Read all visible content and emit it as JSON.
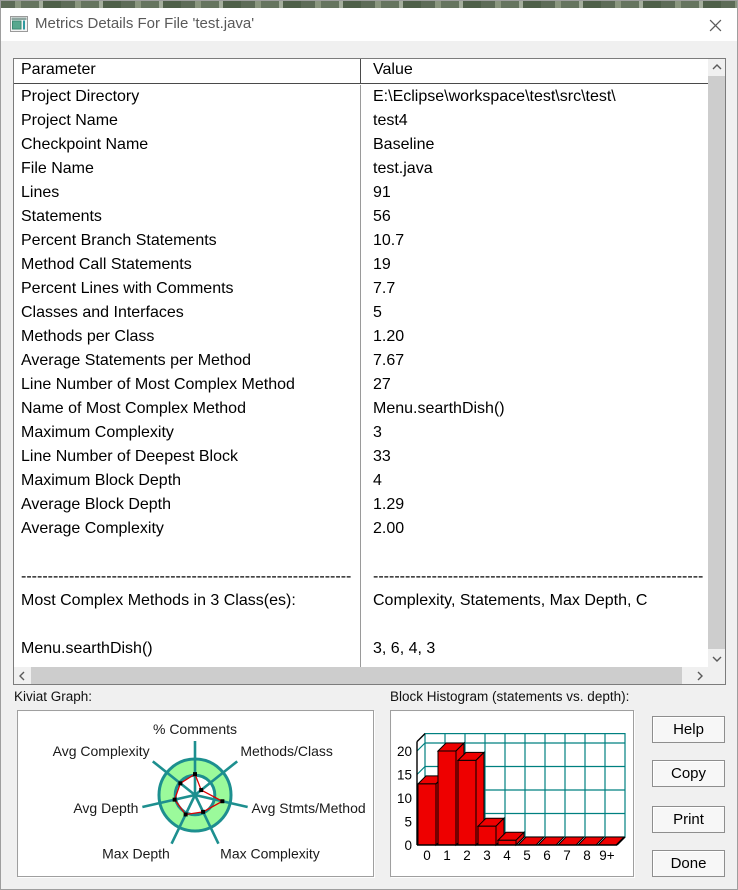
{
  "window": {
    "title": "Metrics Details For File 'test.java'"
  },
  "table": {
    "columns": [
      "Parameter",
      "Value"
    ],
    "rows": [
      [
        "Project Directory",
        "E:\\Eclipse\\workspace\\test\\src\\test\\"
      ],
      [
        "Project Name",
        "test4"
      ],
      [
        "Checkpoint Name",
        "Baseline"
      ],
      [
        "File Name",
        "test.java"
      ],
      [
        "Lines",
        "91"
      ],
      [
        "Statements",
        "56"
      ],
      [
        "Percent Branch Statements",
        "10.7"
      ],
      [
        "Method Call Statements",
        "19"
      ],
      [
        "Percent Lines with Comments",
        "7.7"
      ],
      [
        "Classes and Interfaces",
        "5"
      ],
      [
        "Methods per Class",
        "1.20"
      ],
      [
        "Average Statements per Method",
        "7.67"
      ],
      [
        "Line Number of Most Complex Method",
        "27"
      ],
      [
        "Name of Most Complex Method",
        "Menu.searthDish()"
      ],
      [
        "Maximum Complexity",
        "3"
      ],
      [
        "Line Number of Deepest Block",
        "33"
      ],
      [
        "Maximum Block Depth",
        "4"
      ],
      [
        "Average Block Depth",
        "1.29"
      ],
      [
        "Average Complexity",
        "2.00"
      ],
      [
        "",
        ""
      ],
      [
        "--------------------------------------------------------------",
        "--------------------------------------------------------------"
      ],
      [
        "Most Complex Methods in 3 Class(es):",
        "Complexity, Statements, Max Depth, C"
      ],
      [
        "",
        ""
      ],
      [
        "Menu.searthDish()",
        "3, 6, 4, 3"
      ]
    ]
  },
  "kiviat": {
    "label": "Kiviat Graph:"
  },
  "histogram": {
    "label": "Block Histogram (statements vs. depth):"
  },
  "chart_data": [
    {
      "type": "radar",
      "title": "Kiviat Graph",
      "axes": [
        "% Comments",
        "Methods/Class",
        "Avg Stmts/Method",
        "Max Complexity",
        "Max Depth",
        "Avg Depth",
        "Avg Complexity"
      ],
      "values_normalized": [
        0.58,
        0.22,
        0.78,
        0.52,
        0.6,
        0.58,
        0.52
      ],
      "ring_inner_fraction": 0.55,
      "ring_fill": "#9bfa9b",
      "line_color": "#1d8f8f",
      "data_color": "#dd0000",
      "marker_color": "#000000"
    },
    {
      "type": "bar",
      "title": "Block Histogram (statements vs. depth)",
      "categories": [
        "0",
        "1",
        "2",
        "3",
        "4",
        "5",
        "6",
        "7",
        "8",
        "9+"
      ],
      "values": [
        13,
        20,
        18,
        4,
        1,
        0,
        0,
        0,
        0,
        0
      ],
      "xlabel": "depth",
      "ylabel": "statements",
      "yticks": [
        0,
        5,
        10,
        15,
        20
      ],
      "ylim": [
        0,
        22
      ],
      "style": "3d",
      "grid": true,
      "legend": false,
      "bar_color": "#ee0000",
      "grid_color": "#008080"
    }
  ],
  "buttons": [
    {
      "label": "Help"
    },
    {
      "label": "Copy"
    },
    {
      "label": "Print"
    },
    {
      "label": "Done"
    }
  ]
}
